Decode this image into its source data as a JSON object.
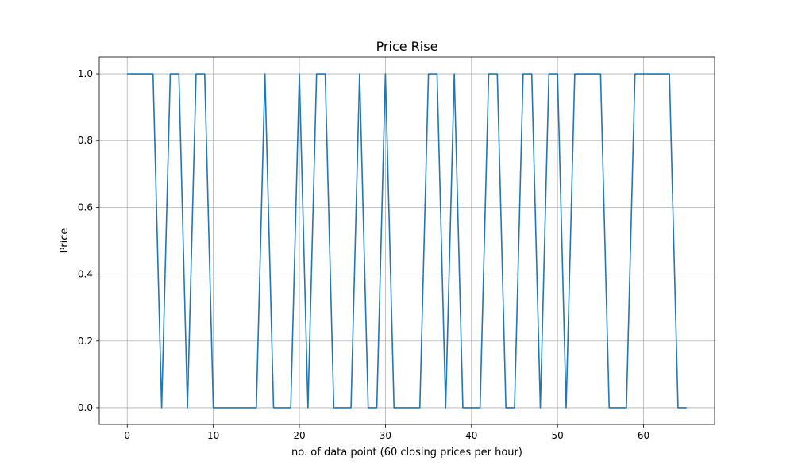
{
  "chart_data": {
    "type": "line",
    "title": "Price Rise",
    "xlabel": "no. of data point (60 closing prices per hour)",
    "ylabel": "Price",
    "xlim": [
      -3.25,
      68.25
    ],
    "ylim": [
      -0.05,
      1.05
    ],
    "xticks": [
      0,
      10,
      20,
      30,
      40,
      50,
      60
    ],
    "xtick_labels": [
      "0",
      "10",
      "20",
      "30",
      "40",
      "50",
      "60"
    ],
    "yticks": [
      0.0,
      0.2,
      0.4,
      0.6,
      0.8,
      1.0
    ],
    "ytick_labels": [
      "0.0",
      "0.2",
      "0.4",
      "0.6",
      "0.8",
      "1.0"
    ],
    "grid": true,
    "series": [
      {
        "color": "#1f77b4",
        "x": [
          0,
          1,
          2,
          3,
          4,
          5,
          6,
          7,
          8,
          9,
          10,
          11,
          12,
          13,
          14,
          15,
          16,
          17,
          18,
          19,
          20,
          21,
          22,
          23,
          24,
          25,
          26,
          27,
          28,
          29,
          30,
          31,
          32,
          33,
          34,
          35,
          36,
          37,
          38,
          39,
          40,
          41,
          42,
          43,
          44,
          45,
          46,
          47,
          48,
          49,
          50,
          51,
          52,
          53,
          54,
          55,
          56,
          57,
          58,
          59,
          60,
          61,
          62,
          63,
          64,
          65
        ],
        "values": [
          1,
          1,
          1,
          1,
          0,
          1,
          1,
          0,
          1,
          1,
          0,
          0,
          0,
          0,
          0,
          0,
          1,
          0,
          0,
          0,
          1,
          0,
          1,
          1,
          0,
          0,
          0,
          1,
          0,
          0,
          1,
          0,
          0,
          0,
          0,
          1,
          1,
          0,
          1,
          0,
          0,
          0,
          1,
          1,
          0,
          0,
          1,
          1,
          0,
          1,
          1,
          0,
          1,
          1,
          1,
          1,
          0,
          0,
          0,
          1,
          1,
          1,
          1,
          1,
          0,
          0
        ]
      }
    ]
  }
}
